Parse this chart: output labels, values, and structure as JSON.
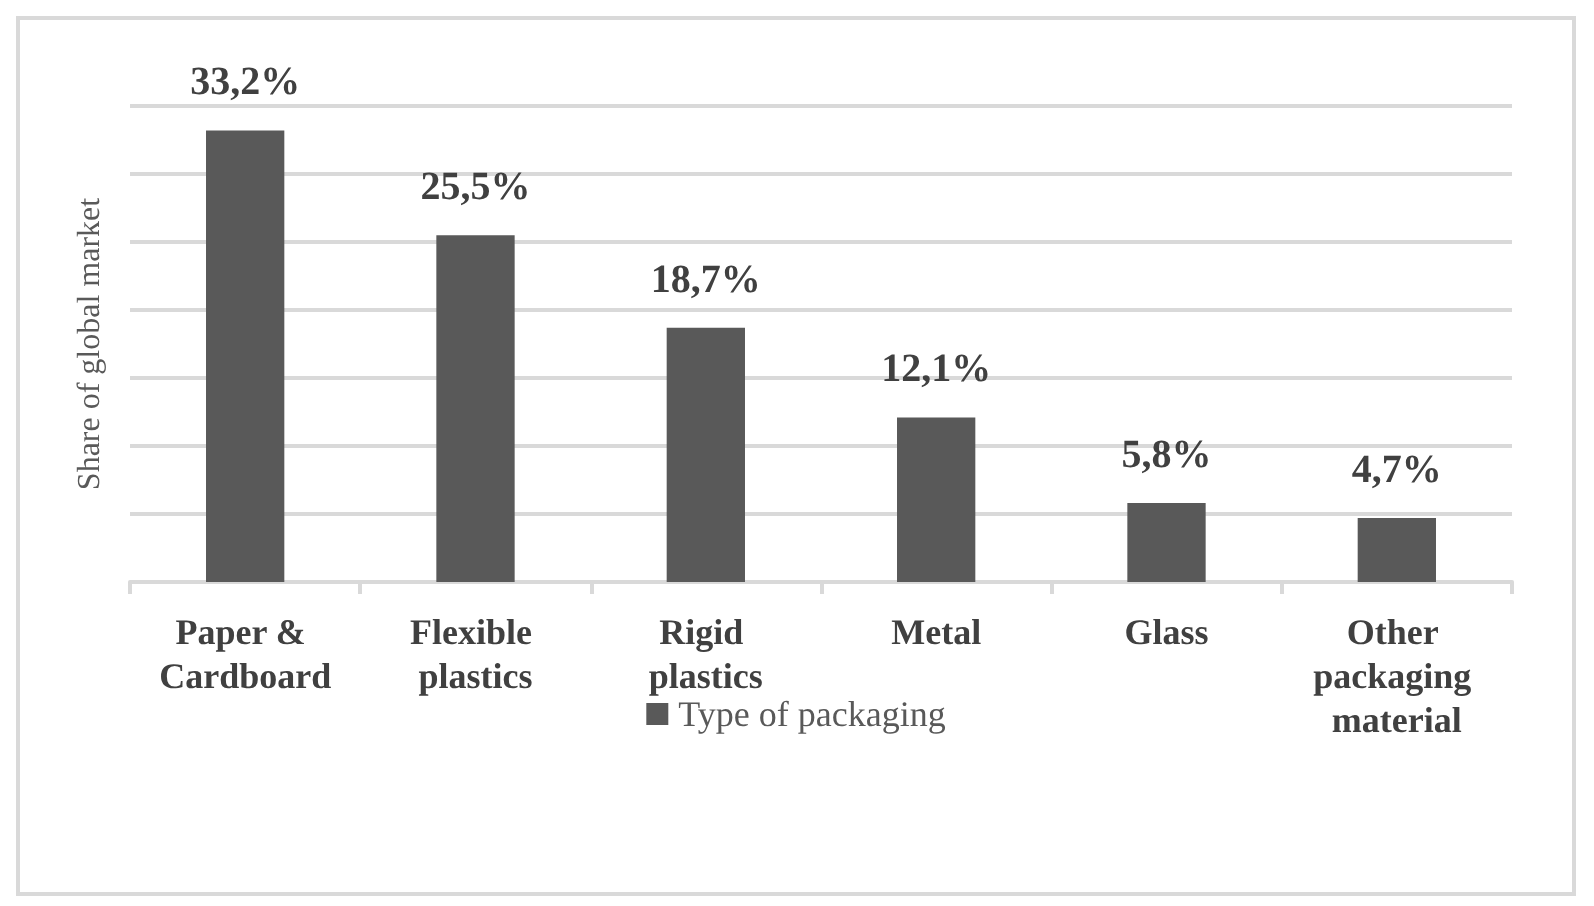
{
  "chart_data": {
    "type": "bar",
    "ylabel": "Share of global market",
    "categories": [
      "Paper & Cardboard",
      "Flexible plastics",
      "Rigid plastics",
      "Metal",
      "Glass",
      "Other packaging material"
    ],
    "series": [
      {
        "name": "Type of packaging",
        "color": "#595959",
        "values": [
          33.2,
          25.5,
          18.7,
          12.1,
          5.8,
          4.7
        ],
        "value_labels": [
          "33,2%",
          "25,5%",
          "18,7%",
          "12,1%",
          "5,8%",
          "4,7%"
        ]
      }
    ],
    "ylim": [
      0,
      35
    ],
    "yticks": [
      {
        "value": 0,
        "label": null
      },
      {
        "value": 5,
        "label": null
      },
      {
        "value": 10,
        "label": null
      },
      {
        "value": 15,
        "label": null
      },
      {
        "value": 20,
        "label": null
      },
      {
        "value": 25,
        "label": null
      },
      {
        "value": 30,
        "label": null
      },
      {
        "value": 35,
        "label": null
      }
    ],
    "grid": "y",
    "legend": "bottom",
    "tick_labels": "x"
  }
}
